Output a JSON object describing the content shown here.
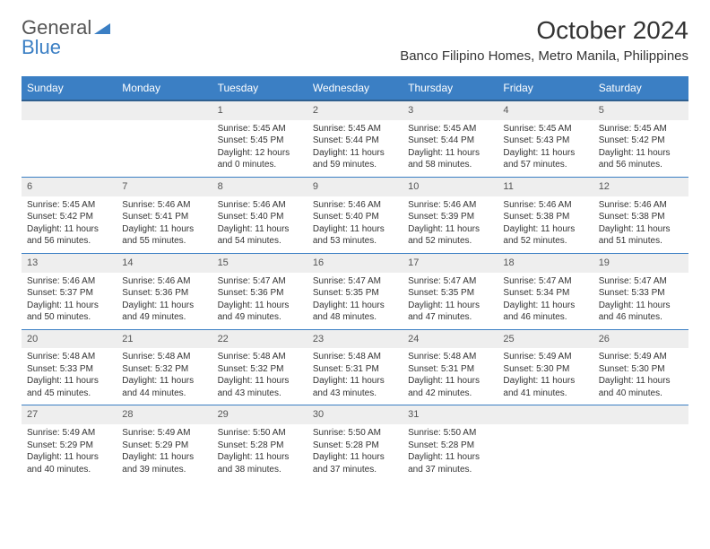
{
  "logo": {
    "text1": "General",
    "text2": "Blue"
  },
  "title": "October 2024",
  "location": "Banco Filipino Homes, Metro Manila, Philippines",
  "colors": {
    "header_bg": "#3b7fc4",
    "header_border": "#2f5f8f",
    "daynum_bg": "#eeeeee",
    "text": "#333333",
    "row_border": "#3b7fc4"
  },
  "dayHeaders": [
    "Sunday",
    "Monday",
    "Tuesday",
    "Wednesday",
    "Thursday",
    "Friday",
    "Saturday"
  ],
  "weeks": [
    [
      null,
      null,
      {
        "n": "1",
        "sr": "Sunrise: 5:45 AM",
        "ss": "Sunset: 5:45 PM",
        "dl": "Daylight: 12 hours and 0 minutes."
      },
      {
        "n": "2",
        "sr": "Sunrise: 5:45 AM",
        "ss": "Sunset: 5:44 PM",
        "dl": "Daylight: 11 hours and 59 minutes."
      },
      {
        "n": "3",
        "sr": "Sunrise: 5:45 AM",
        "ss": "Sunset: 5:44 PM",
        "dl": "Daylight: 11 hours and 58 minutes."
      },
      {
        "n": "4",
        "sr": "Sunrise: 5:45 AM",
        "ss": "Sunset: 5:43 PM",
        "dl": "Daylight: 11 hours and 57 minutes."
      },
      {
        "n": "5",
        "sr": "Sunrise: 5:45 AM",
        "ss": "Sunset: 5:42 PM",
        "dl": "Daylight: 11 hours and 56 minutes."
      }
    ],
    [
      {
        "n": "6",
        "sr": "Sunrise: 5:45 AM",
        "ss": "Sunset: 5:42 PM",
        "dl": "Daylight: 11 hours and 56 minutes."
      },
      {
        "n": "7",
        "sr": "Sunrise: 5:46 AM",
        "ss": "Sunset: 5:41 PM",
        "dl": "Daylight: 11 hours and 55 minutes."
      },
      {
        "n": "8",
        "sr": "Sunrise: 5:46 AM",
        "ss": "Sunset: 5:40 PM",
        "dl": "Daylight: 11 hours and 54 minutes."
      },
      {
        "n": "9",
        "sr": "Sunrise: 5:46 AM",
        "ss": "Sunset: 5:40 PM",
        "dl": "Daylight: 11 hours and 53 minutes."
      },
      {
        "n": "10",
        "sr": "Sunrise: 5:46 AM",
        "ss": "Sunset: 5:39 PM",
        "dl": "Daylight: 11 hours and 52 minutes."
      },
      {
        "n": "11",
        "sr": "Sunrise: 5:46 AM",
        "ss": "Sunset: 5:38 PM",
        "dl": "Daylight: 11 hours and 52 minutes."
      },
      {
        "n": "12",
        "sr": "Sunrise: 5:46 AM",
        "ss": "Sunset: 5:38 PM",
        "dl": "Daylight: 11 hours and 51 minutes."
      }
    ],
    [
      {
        "n": "13",
        "sr": "Sunrise: 5:46 AM",
        "ss": "Sunset: 5:37 PM",
        "dl": "Daylight: 11 hours and 50 minutes."
      },
      {
        "n": "14",
        "sr": "Sunrise: 5:46 AM",
        "ss": "Sunset: 5:36 PM",
        "dl": "Daylight: 11 hours and 49 minutes."
      },
      {
        "n": "15",
        "sr": "Sunrise: 5:47 AM",
        "ss": "Sunset: 5:36 PM",
        "dl": "Daylight: 11 hours and 49 minutes."
      },
      {
        "n": "16",
        "sr": "Sunrise: 5:47 AM",
        "ss": "Sunset: 5:35 PM",
        "dl": "Daylight: 11 hours and 48 minutes."
      },
      {
        "n": "17",
        "sr": "Sunrise: 5:47 AM",
        "ss": "Sunset: 5:35 PM",
        "dl": "Daylight: 11 hours and 47 minutes."
      },
      {
        "n": "18",
        "sr": "Sunrise: 5:47 AM",
        "ss": "Sunset: 5:34 PM",
        "dl": "Daylight: 11 hours and 46 minutes."
      },
      {
        "n": "19",
        "sr": "Sunrise: 5:47 AM",
        "ss": "Sunset: 5:33 PM",
        "dl": "Daylight: 11 hours and 46 minutes."
      }
    ],
    [
      {
        "n": "20",
        "sr": "Sunrise: 5:48 AM",
        "ss": "Sunset: 5:33 PM",
        "dl": "Daylight: 11 hours and 45 minutes."
      },
      {
        "n": "21",
        "sr": "Sunrise: 5:48 AM",
        "ss": "Sunset: 5:32 PM",
        "dl": "Daylight: 11 hours and 44 minutes."
      },
      {
        "n": "22",
        "sr": "Sunrise: 5:48 AM",
        "ss": "Sunset: 5:32 PM",
        "dl": "Daylight: 11 hours and 43 minutes."
      },
      {
        "n": "23",
        "sr": "Sunrise: 5:48 AM",
        "ss": "Sunset: 5:31 PM",
        "dl": "Daylight: 11 hours and 43 minutes."
      },
      {
        "n": "24",
        "sr": "Sunrise: 5:48 AM",
        "ss": "Sunset: 5:31 PM",
        "dl": "Daylight: 11 hours and 42 minutes."
      },
      {
        "n": "25",
        "sr": "Sunrise: 5:49 AM",
        "ss": "Sunset: 5:30 PM",
        "dl": "Daylight: 11 hours and 41 minutes."
      },
      {
        "n": "26",
        "sr": "Sunrise: 5:49 AM",
        "ss": "Sunset: 5:30 PM",
        "dl": "Daylight: 11 hours and 40 minutes."
      }
    ],
    [
      {
        "n": "27",
        "sr": "Sunrise: 5:49 AM",
        "ss": "Sunset: 5:29 PM",
        "dl": "Daylight: 11 hours and 40 minutes."
      },
      {
        "n": "28",
        "sr": "Sunrise: 5:49 AM",
        "ss": "Sunset: 5:29 PM",
        "dl": "Daylight: 11 hours and 39 minutes."
      },
      {
        "n": "29",
        "sr": "Sunrise: 5:50 AM",
        "ss": "Sunset: 5:28 PM",
        "dl": "Daylight: 11 hours and 38 minutes."
      },
      {
        "n": "30",
        "sr": "Sunrise: 5:50 AM",
        "ss": "Sunset: 5:28 PM",
        "dl": "Daylight: 11 hours and 37 minutes."
      },
      {
        "n": "31",
        "sr": "Sunrise: 5:50 AM",
        "ss": "Sunset: 5:28 PM",
        "dl": "Daylight: 11 hours and 37 minutes."
      },
      null,
      null
    ]
  ]
}
